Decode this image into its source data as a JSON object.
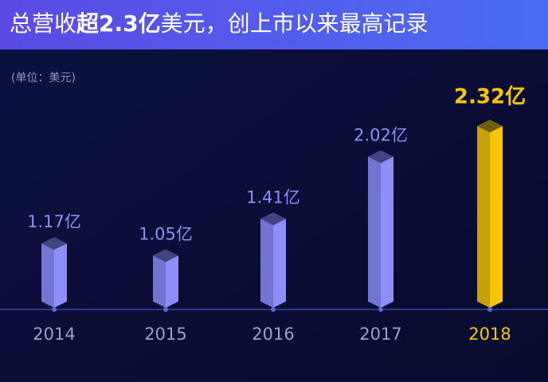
{
  "chart_data": {
    "type": "bar",
    "title": [
      "总营收",
      "超2.3亿",
      "美元，创上市以来最高记录"
    ],
    "subtitle": "(单位：美元)",
    "categories": [
      "2014",
      "2015",
      "2016",
      "2017",
      "2018"
    ],
    "values": [
      1.17,
      1.05,
      1.41,
      2.02,
      2.32
    ],
    "value_labels": [
      "1.17亿",
      "1.05亿",
      "1.41亿",
      "2.02亿",
      "2.32亿"
    ],
    "colors": [
      "#8e8ef8",
      "#8e8ef8",
      "#8e8ef8",
      "#8e8ef8",
      "#f7c600"
    ],
    "highlight_color": "#f7c600",
    "ylim": [
      0.6,
      2.5
    ]
  }
}
